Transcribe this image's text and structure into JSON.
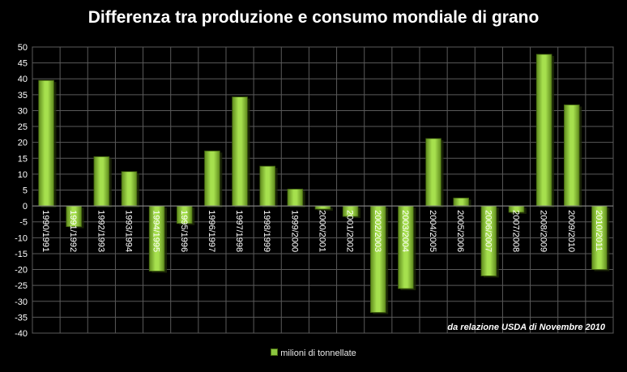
{
  "chart_data": {
    "type": "bar",
    "title": "Differenza tra produzione e consumo mondiale di grano",
    "xlabel": "",
    "ylabel": "",
    "ylim": [
      -40,
      50
    ],
    "ytick_step": 5,
    "grid": true,
    "legend_position": "bottom",
    "annotation": "da relazione USDA di Novembre 2010",
    "bar_color": "#8cc63f",
    "categories": [
      "1990/1991",
      "1991/1992",
      "1992/1993",
      "1993/1994",
      "1994/1995",
      "1995/1996",
      "1996/1997",
      "1997/1998",
      "1998/1999",
      "1999/2000",
      "2000/2001",
      "2001/2002",
      "2002/2003",
      "2003/2004",
      "2004/2005",
      "2005/2006",
      "2006/2007",
      "2007/2008",
      "2008/2009",
      "2009/2010",
      "2010/2011"
    ],
    "series": [
      {
        "name": "milioni di tonnellate",
        "values": [
          39.5,
          -6.5,
          15.5,
          10.8,
          -20.5,
          -5.5,
          17.3,
          34.3,
          12.5,
          5.3,
          -1.0,
          -3.3,
          -33.5,
          -26.0,
          21.2,
          2.5,
          -22.0,
          -2.0,
          47.7,
          31.8,
          -20.0
        ]
      }
    ]
  }
}
